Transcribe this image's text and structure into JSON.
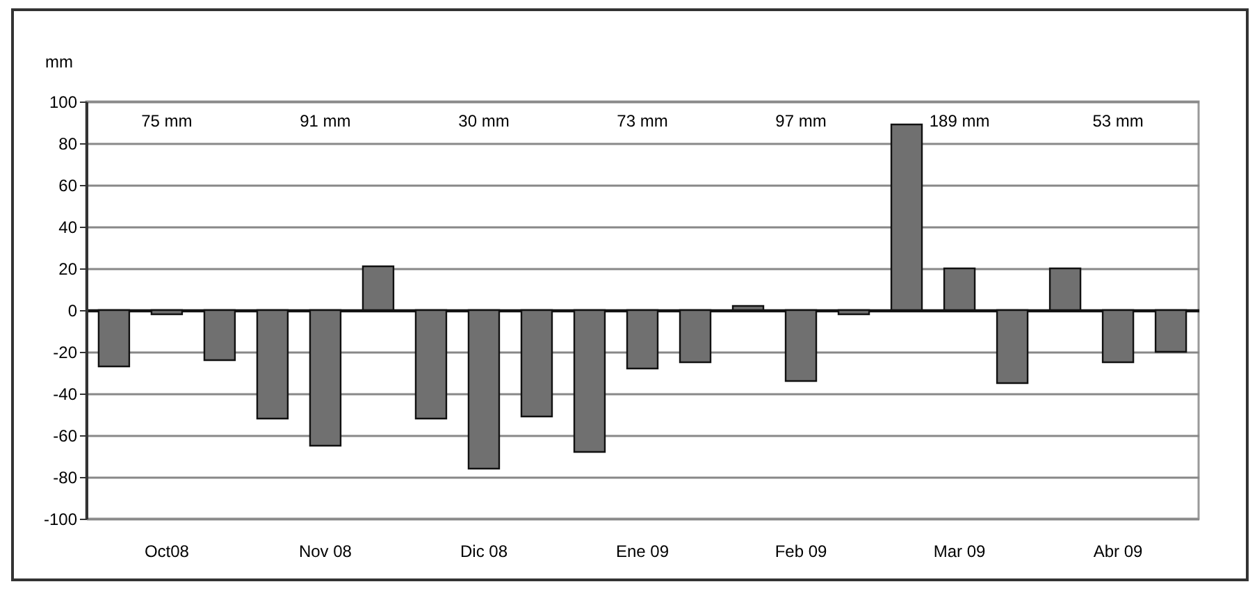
{
  "chart_data": {
    "type": "bar",
    "ylabel": "mm",
    "categories": [
      null,
      "Oct08",
      null,
      null,
      "Nov 08",
      null,
      null,
      "Dic 08",
      null,
      null,
      "Ene 09",
      null,
      null,
      "Feb 09",
      null,
      null,
      "Mar 09",
      null,
      null,
      "Abr 09",
      null
    ],
    "values": [
      -27,
      -2,
      -24,
      -52,
      -65,
      21,
      -52,
      -76,
      -51,
      -68,
      -28,
      -25,
      2,
      -34,
      -2,
      89,
      20,
      -35,
      20,
      -25,
      -20
    ],
    "color": "#707070",
    "ylim": [
      -100,
      100
    ],
    "yticks": [
      -100,
      -80,
      -60,
      -40,
      -20,
      0,
      20,
      40,
      60,
      80,
      100
    ],
    "grid": "y",
    "annotations": [
      "75 mm",
      "91 mm",
      "30 mm",
      "73 mm",
      "97 mm",
      "189 mm",
      "53 mm"
    ]
  }
}
